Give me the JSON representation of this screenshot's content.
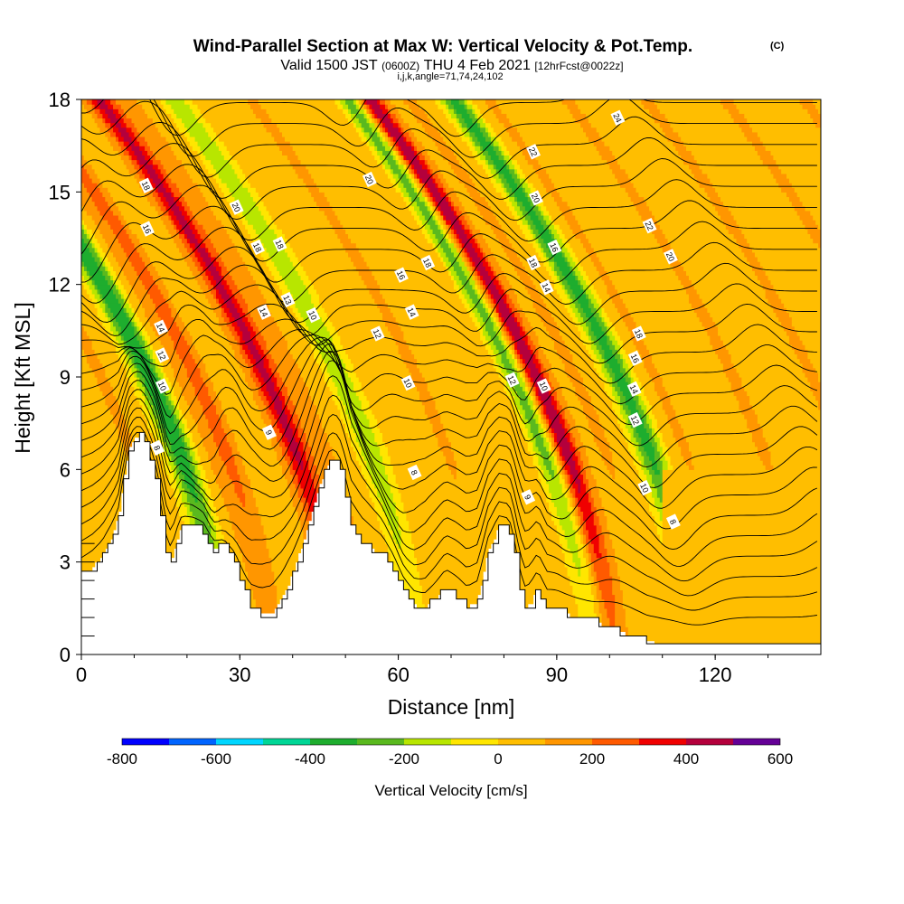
{
  "header": {
    "title": "Wind-Parallel Section at Max W: Vertical Velocity & Pot.Temp.",
    "title_mark": "(C)",
    "valid_prefix": "Valid 1500 JST",
    "valid_utc": "(0600Z)",
    "valid_date": "THU 4 Feb 2021",
    "forecast": "[12hrFcst@0022z]",
    "indices": "i,j,k,angle=71,74,24,102"
  },
  "chart_data": {
    "type": "heatmap",
    "xlabel": "Distance [nm]",
    "ylabel": "Height [Kft MSL]",
    "xlim": [
      0,
      140
    ],
    "ylim": [
      0,
      18
    ],
    "x_ticks": [
      0,
      30,
      60,
      90,
      120
    ],
    "y_ticks": [
      0,
      3,
      6,
      9,
      12,
      15,
      18
    ],
    "grid": false,
    "colorbar": {
      "label": "Vertical Velocity [cm/s]",
      "placement": "bottom",
      "ticks": [
        -800,
        -600,
        -400,
        -200,
        0,
        200,
        400,
        600
      ],
      "bins": [
        {
          "from": -800,
          "to": -700,
          "color": "#0000ff"
        },
        {
          "from": -700,
          "to": -600,
          "color": "#0064ff"
        },
        {
          "from": -600,
          "to": -500,
          "color": "#00d6ff"
        },
        {
          "from": -500,
          "to": -400,
          "color": "#00d696"
        },
        {
          "from": -400,
          "to": -300,
          "color": "#1ead2e"
        },
        {
          "from": -300,
          "to": -200,
          "color": "#5ab91e"
        },
        {
          "from": -200,
          "to": -100,
          "color": "#b8e600"
        },
        {
          "from": -100,
          "to": 0,
          "color": "#ffe600"
        },
        {
          "from": 0,
          "to": 100,
          "color": "#ffbe00"
        },
        {
          "from": 100,
          "to": 200,
          "color": "#ff9600"
        },
        {
          "from": 200,
          "to": 300,
          "color": "#ff5a00"
        },
        {
          "from": 300,
          "to": 400,
          "color": "#f00000"
        },
        {
          "from": 400,
          "to": 500,
          "color": "#b4003c"
        },
        {
          "from": 500,
          "to": 600,
          "color": "#640096"
        }
      ]
    },
    "terrain_kft": [
      [
        0,
        2.55
      ],
      [
        2,
        2.8
      ],
      [
        4,
        3.2
      ],
      [
        6,
        3.9
      ],
      [
        7,
        4.4
      ],
      [
        8,
        5.6
      ],
      [
        9,
        6.6
      ],
      [
        10,
        7.0
      ],
      [
        11,
        7.1
      ],
      [
        12,
        6.8
      ],
      [
        13,
        6.3
      ],
      [
        14,
        5.6
      ],
      [
        15,
        4.6
      ],
      [
        16,
        3.4
      ],
      [
        17,
        2.9
      ],
      [
        18,
        3.6
      ],
      [
        19,
        4.1
      ],
      [
        21,
        4.1
      ],
      [
        23,
        4.0
      ],
      [
        25,
        3.4
      ],
      [
        27,
        3.5
      ],
      [
        29,
        3.0
      ],
      [
        31,
        2.0
      ],
      [
        32,
        1.6
      ],
      [
        34,
        1.3
      ],
      [
        36,
        1.3
      ],
      [
        38,
        1.8
      ],
      [
        40,
        2.6
      ],
      [
        42,
        3.6
      ],
      [
        44,
        4.8
      ],
      [
        46,
        5.9
      ],
      [
        47,
        6.3
      ],
      [
        48,
        6.3
      ],
      [
        49,
        5.9
      ],
      [
        50,
        5.2
      ],
      [
        51,
        4.3
      ],
      [
        53,
        3.7
      ],
      [
        55,
        3.4
      ],
      [
        57,
        3.2
      ],
      [
        59,
        2.7
      ],
      [
        61,
        2.0
      ],
      [
        63,
        1.6
      ],
      [
        65,
        1.5
      ],
      [
        67,
        1.8
      ],
      [
        69,
        2.2
      ],
      [
        71,
        1.9
      ],
      [
        73,
        1.5
      ],
      [
        75,
        1.7
      ],
      [
        77,
        3.3
      ],
      [
        79,
        4.1
      ],
      [
        81,
        4.0
      ],
      [
        82,
        3.2
      ],
      [
        83,
        2.1
      ],
      [
        84,
        1.5
      ],
      [
        85,
        1.6
      ],
      [
        86,
        2.0
      ],
      [
        87,
        1.9
      ],
      [
        88,
        1.4
      ],
      [
        90,
        1.4
      ],
      [
        92,
        1.3
      ],
      [
        95,
        1.2
      ],
      [
        98,
        1.0
      ],
      [
        101,
        0.8
      ],
      [
        104,
        0.6
      ],
      [
        107,
        0.4
      ],
      [
        110,
        0.35
      ],
      [
        140,
        0.35
      ]
    ],
    "theta_contours_c": [
      8,
      9,
      10,
      12,
      13,
      14,
      16,
      18,
      20,
      22,
      24
    ],
    "theta_labels": [
      {
        "text": "18",
        "x": 12.2,
        "y": 15.2
      },
      {
        "text": "16",
        "x": 12.4,
        "y": 13.8
      },
      {
        "text": "14",
        "x": 15.0,
        "y": 10.6
      },
      {
        "text": "12",
        "x": 15.2,
        "y": 9.7
      },
      {
        "text": "10",
        "x": 15.3,
        "y": 8.7
      },
      {
        "text": "8",
        "x": 14.3,
        "y": 6.7
      },
      {
        "text": "20",
        "x": 29.3,
        "y": 14.5
      },
      {
        "text": "18",
        "x": 33.3,
        "y": 13.2
      },
      {
        "text": "18",
        "x": 37.5,
        "y": 13.3
      },
      {
        "text": "14",
        "x": 34.5,
        "y": 11.1
      },
      {
        "text": "13",
        "x": 39.0,
        "y": 11.5
      },
      {
        "text": "10",
        "x": 43.8,
        "y": 11.0
      },
      {
        "text": "9",
        "x": 35.5,
        "y": 7.2
      },
      {
        "text": "20",
        "x": 54.5,
        "y": 15.4
      },
      {
        "text": "16",
        "x": 60.5,
        "y": 12.3
      },
      {
        "text": "18",
        "x": 65.5,
        "y": 12.7
      },
      {
        "text": "14",
        "x": 62.5,
        "y": 11.1
      },
      {
        "text": "12",
        "x": 56.0,
        "y": 10.4
      },
      {
        "text": "10",
        "x": 61.8,
        "y": 8.8
      },
      {
        "text": "8",
        "x": 63.0,
        "y": 5.9
      },
      {
        "text": "22",
        "x": 85.5,
        "y": 16.3
      },
      {
        "text": "20",
        "x": 86.0,
        "y": 14.8
      },
      {
        "text": "18",
        "x": 85.5,
        "y": 12.7
      },
      {
        "text": "16",
        "x": 89.5,
        "y": 13.2
      },
      {
        "text": "14",
        "x": 88.0,
        "y": 11.9
      },
      {
        "text": "12",
        "x": 81.5,
        "y": 8.9
      },
      {
        "text": "10",
        "x": 87.5,
        "y": 8.7
      },
      {
        "text": "9",
        "x": 84.5,
        "y": 5.1
      },
      {
        "text": "24",
        "x": 101.5,
        "y": 17.4
      },
      {
        "text": "22",
        "x": 107.5,
        "y": 13.9
      },
      {
        "text": "20",
        "x": 111.5,
        "y": 12.9
      },
      {
        "text": "18",
        "x": 105.5,
        "y": 10.4
      },
      {
        "text": "16",
        "x": 104.8,
        "y": 9.6
      },
      {
        "text": "14",
        "x": 104.6,
        "y": 8.6
      },
      {
        "text": "12",
        "x": 104.8,
        "y": 7.6
      },
      {
        "text": "10",
        "x": 106.6,
        "y": 5.4
      },
      {
        "text": "8",
        "x": 112.0,
        "y": 4.3
      }
    ]
  }
}
